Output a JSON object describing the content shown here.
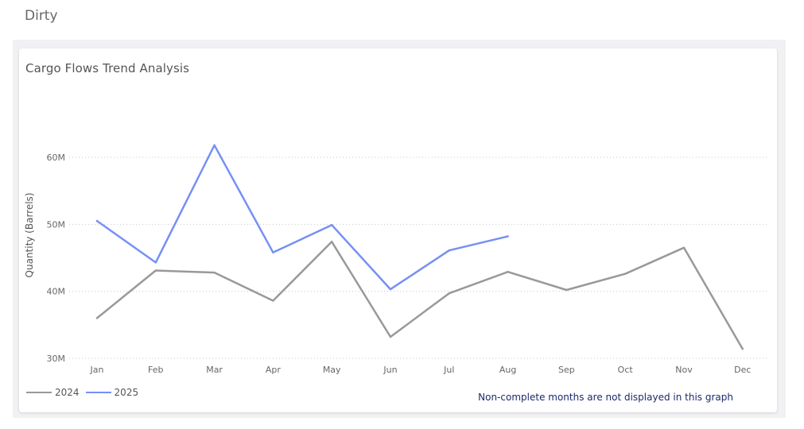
{
  "page": {
    "label": "Dirty"
  },
  "chart_data": {
    "type": "line",
    "title": "Cargo Flows Trend Analysis",
    "xlabel": "",
    "ylabel": "Quantity (Barrels)",
    "categories": [
      "Jan",
      "Feb",
      "Mar",
      "Apr",
      "May",
      "Jun",
      "Jul",
      "Aug",
      "Sep",
      "Oct",
      "Nov",
      "Dec"
    ],
    "yticks": [
      30000000,
      40000000,
      50000000,
      60000000
    ],
    "ytick_labels": [
      "30M",
      "40M",
      "50M",
      "60M"
    ],
    "ylim": [
      30000000,
      63000000
    ],
    "grid": "horizontal-dotted",
    "legend_position": "bottom-left",
    "series": [
      {
        "name": "2024",
        "color": "#999999",
        "values": [
          36000000,
          43100000,
          42800000,
          38600000,
          47400000,
          33200000,
          39700000,
          42900000,
          40200000,
          42600000,
          46500000,
          31400000
        ]
      },
      {
        "name": "2025",
        "color": "#7690f4",
        "values": [
          50500000,
          44300000,
          61800000,
          45800000,
          49900000,
          40300000,
          46100000,
          48200000,
          null,
          null,
          null,
          null
        ]
      }
    ],
    "annotation": "Non-complete months are not displayed in this graph"
  }
}
